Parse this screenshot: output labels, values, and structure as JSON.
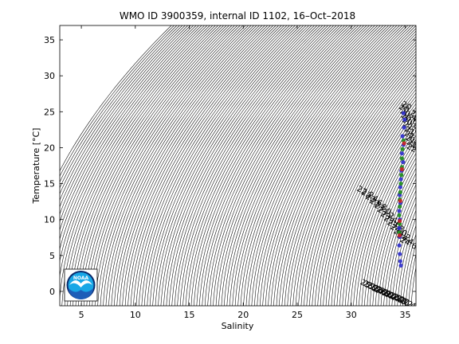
{
  "chart_data": {
    "type": "scatter",
    "title": "WMO ID 3900359, internal ID 1102, 16–Oct–2018",
    "xlabel": "Salinity",
    "ylabel": "Temperature [°C]",
    "xlim": [
      3,
      36
    ],
    "ylim": [
      -2,
      37
    ],
    "xticks": [
      5,
      10,
      15,
      20,
      25,
      30,
      35
    ],
    "yticks": [
      0,
      5,
      10,
      15,
      20,
      25,
      30,
      35
    ],
    "xtick_labels": [
      "5",
      "10",
      "15",
      "20",
      "25",
      "30",
      "35"
    ],
    "ytick_labels": [
      "0",
      "5",
      "10",
      "15",
      "20",
      "25",
      "30",
      "35"
    ],
    "grid": false,
    "legend": "none",
    "density_contours": {
      "sigma_levels": [
        -0.4,
        -0.2,
        0.0,
        0.2,
        0.4,
        0.6,
        0.8,
        1.0,
        1.2,
        1.4,
        1.6,
        1.8,
        2.0,
        2.2,
        2.4,
        2.6,
        2.8,
        3.0,
        3.2,
        3.4,
        3.6,
        3.8,
        4.0,
        4.2,
        4.4,
        4.6,
        4.8,
        5.0,
        5.2,
        5.4,
        5.6,
        5.8,
        6.0,
        6.2,
        6.4,
        6.6,
        6.8,
        7.0,
        7.2,
        7.4,
        7.6,
        7.8,
        8.0,
        8.2,
        8.4,
        8.6,
        8.8,
        9.0,
        9.2,
        9.4,
        9.6,
        9.8,
        10.0,
        10.2,
        10.4,
        10.6,
        10.8,
        11.0,
        11.2,
        11.4,
        11.6,
        11.8,
        12.0,
        12.2,
        12.4,
        12.6,
        12.8,
        13.0,
        13.2,
        13.4,
        13.6,
        13.8,
        14.0,
        14.2,
        14.4,
        14.6,
        14.8,
        15.0,
        15.2,
        15.4,
        15.6,
        15.8,
        16.0,
        16.2,
        16.4,
        16.6,
        16.8,
        17.0,
        17.2,
        17.4,
        17.6,
        17.8,
        18.0,
        18.2,
        18.4,
        18.6,
        18.8,
        19.0,
        19.2,
        19.4,
        19.6,
        19.8,
        20.0,
        20.2,
        20.4,
        20.6,
        20.8,
        21.0,
        21.2,
        21.4,
        21.6,
        21.8,
        22.0,
        22.2,
        22.4,
        22.6,
        22.8,
        23.0,
        23.2,
        23.4,
        23.6,
        23.8,
        24.0,
        24.2,
        24.4,
        24.6,
        24.8,
        25.0,
        25.2,
        25.4,
        25.6,
        25.8,
        26.0,
        26.2,
        26.4,
        26.6,
        26.8,
        27.0,
        27.2,
        27.4,
        27.6,
        27.8,
        28.0
      ],
      "labels": [
        {
          "text": "20",
          "s": 35.0,
          "t": 25.5
        },
        {
          "text": "20.2",
          "s": 35.1,
          "t": 24.9
        },
        {
          "text": "20.4",
          "s": 35.2,
          "t": 24.3
        },
        {
          "text": "20.6",
          "s": 35.3,
          "t": 23.7
        },
        {
          "text": "20.8",
          "s": 35.4,
          "t": 23.1
        },
        {
          "text": "21.0",
          "s": 35.5,
          "t": 22.5
        },
        {
          "text": "21.2",
          "s": 35.6,
          "t": 21.8
        },
        {
          "text": "21.4",
          "s": 35.6,
          "t": 21.2
        },
        {
          "text": "21.6",
          "s": 35.7,
          "t": 20.6
        },
        {
          "text": "21.8",
          "s": 35.8,
          "t": 20.0
        },
        {
          "text": "22.0",
          "s": 35.8,
          "t": 19.4
        },
        {
          "text": "22.2",
          "s": 31.2,
          "t": 13.5
        },
        {
          "text": "22.4",
          "s": 31.6,
          "t": 13.0
        },
        {
          "text": "22.6",
          "s": 32.0,
          "t": 12.4
        },
        {
          "text": "22.8",
          "s": 32.4,
          "t": 11.8
        },
        {
          "text": "23.0",
          "s": 32.8,
          "t": 11.2
        },
        {
          "text": "23.2",
          "s": 33.1,
          "t": 10.6
        },
        {
          "text": "23.4",
          "s": 33.4,
          "t": 10.0
        },
        {
          "text": "23.6",
          "s": 33.7,
          "t": 9.4
        },
        {
          "text": "23.8",
          "s": 34.0,
          "t": 8.8
        },
        {
          "text": "24.0",
          "s": 34.3,
          "t": 8.2
        },
        {
          "text": "24.2",
          "s": 34.6,
          "t": 7.6
        },
        {
          "text": "24.4",
          "s": 34.9,
          "t": 7.0
        },
        {
          "text": "24.6",
          "s": 35.2,
          "t": 6.4
        },
        {
          "text": "25.0",
          "s": 31.5,
          "t": 0.5
        },
        {
          "text": "25.2",
          "s": 31.8,
          "t": 0.3
        },
        {
          "text": "25.4",
          "s": 32.1,
          "t": 0.1
        },
        {
          "text": "25.6",
          "s": 32.4,
          "t": -0.1
        },
        {
          "text": "25.8",
          "s": 32.7,
          "t": -0.3
        },
        {
          "text": "26.0",
          "s": 33.0,
          "t": -0.5
        },
        {
          "text": "26.2",
          "s": 33.3,
          "t": -0.7
        },
        {
          "text": "26.4",
          "s": 33.6,
          "t": -0.9
        },
        {
          "text": "26.6",
          "s": 33.9,
          "t": -1.1
        },
        {
          "text": "26.8",
          "s": 34.2,
          "t": -1.3
        },
        {
          "text": "27.0",
          "s": 34.5,
          "t": -1.5
        },
        {
          "text": "27.2",
          "s": 34.8,
          "t": -1.7
        },
        {
          "text": "27.4",
          "s": 35.1,
          "t": -1.9
        }
      ]
    },
    "series": [
      {
        "color": "#2b2bcc",
        "points": [
          [
            34.85,
            24.8
          ],
          [
            34.95,
            23.9
          ],
          [
            34.9,
            22.8
          ],
          [
            34.75,
            21.6
          ],
          [
            34.85,
            20.4
          ],
          [
            34.7,
            19.2
          ],
          [
            34.8,
            18.0
          ],
          [
            34.65,
            16.8
          ],
          [
            34.6,
            15.6
          ],
          [
            34.55,
            14.5
          ],
          [
            34.5,
            13.4
          ],
          [
            34.55,
            12.3
          ],
          [
            34.45,
            11.2
          ],
          [
            34.5,
            10.0
          ],
          [
            34.45,
            8.8
          ],
          [
            34.5,
            7.6
          ],
          [
            34.45,
            6.4
          ],
          [
            34.5,
            5.2
          ],
          [
            34.55,
            4.2
          ],
          [
            34.6,
            3.6
          ]
        ]
      },
      {
        "color": "#1a8a1a",
        "points": [
          [
            34.85,
            21.0
          ],
          [
            34.75,
            19.8
          ],
          [
            34.7,
            18.5
          ],
          [
            34.7,
            17.3
          ],
          [
            34.65,
            16.2
          ],
          [
            34.6,
            15.0
          ],
          [
            34.55,
            13.8
          ],
          [
            34.5,
            12.8
          ],
          [
            34.5,
            11.8
          ],
          [
            34.45,
            10.6
          ],
          [
            34.5,
            9.4
          ],
          [
            34.45,
            8.2
          ]
        ]
      },
      {
        "color": "#cc2222",
        "points": [
          [
            34.9,
            20.6
          ],
          [
            34.7,
            17.0
          ],
          [
            34.55,
            12.6
          ],
          [
            34.5,
            9.8
          ],
          [
            34.48,
            7.8
          ]
        ]
      }
    ]
  },
  "logo": {
    "text": "NOAA",
    "colors": {
      "navy": "#0b2a6b",
      "blue": "#1e5eb8",
      "light": "#18a7e6",
      "white": "#ffffff"
    }
  }
}
